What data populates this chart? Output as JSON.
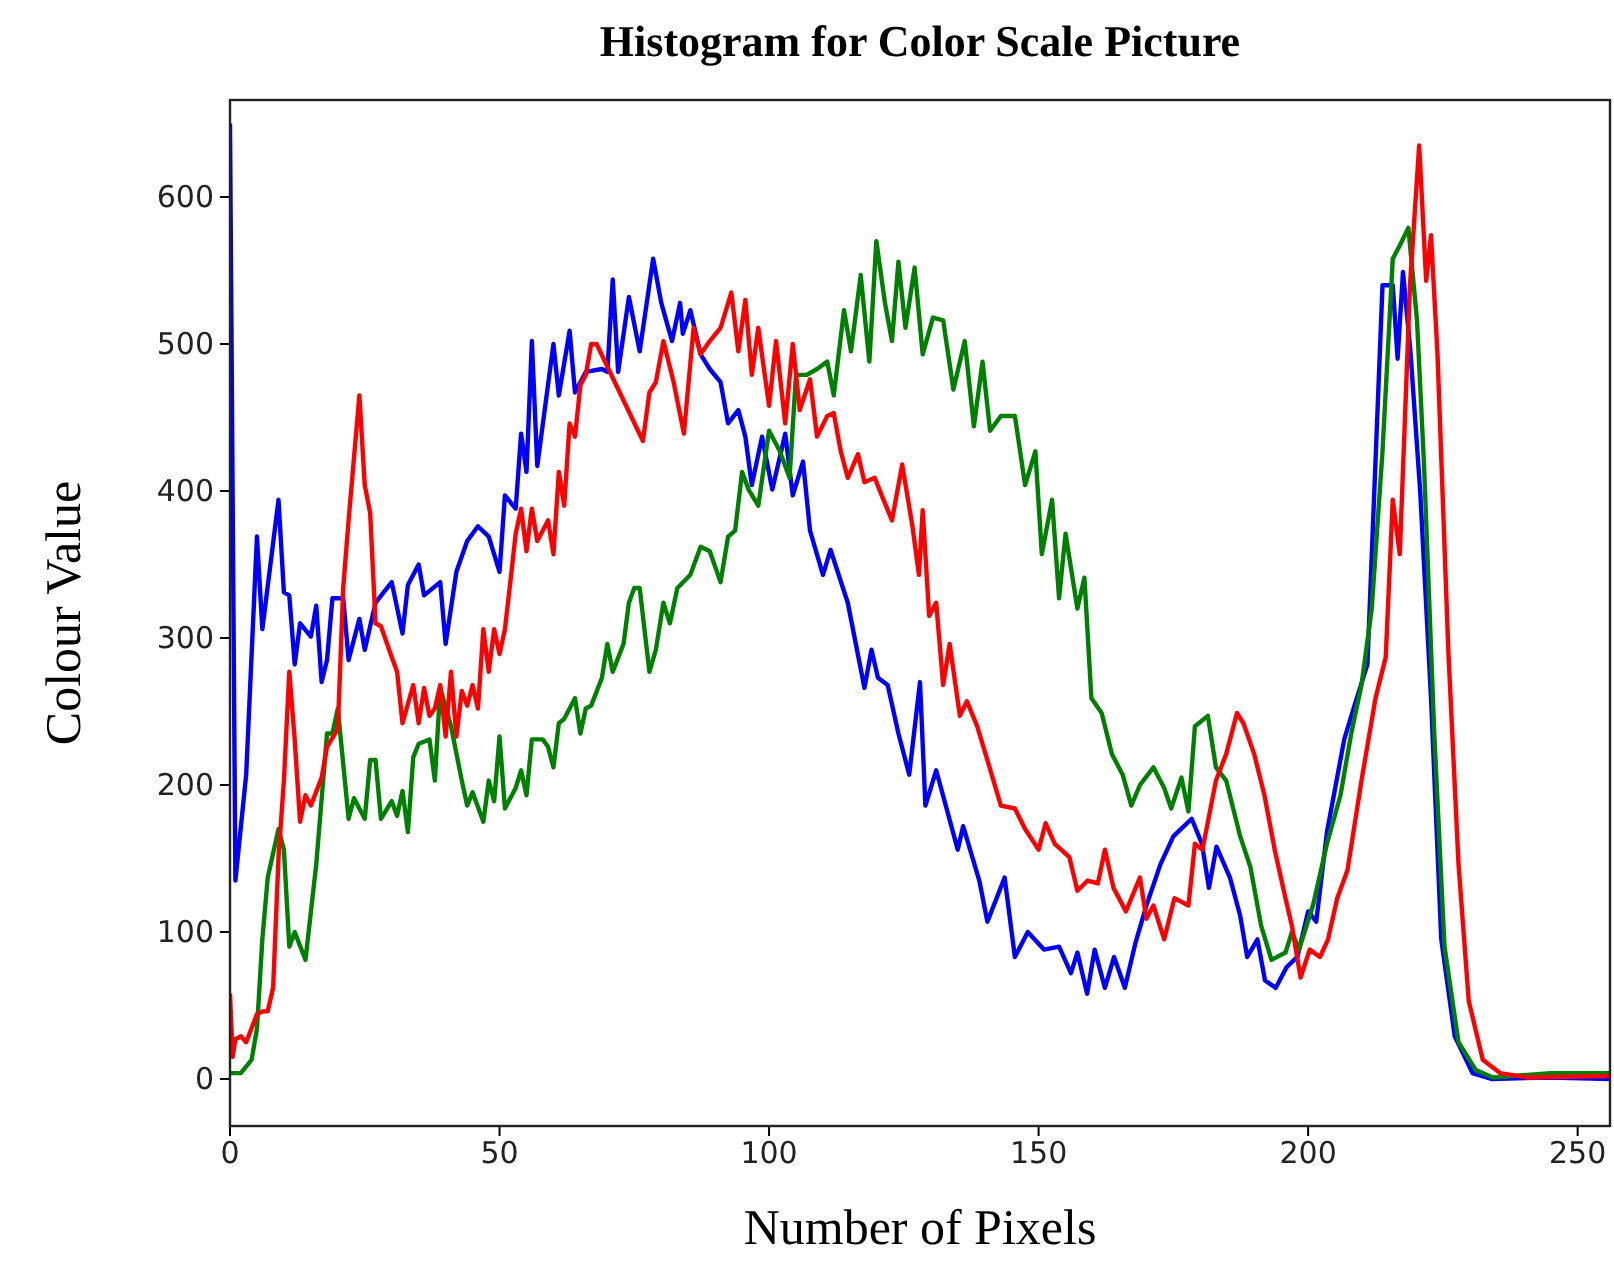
{
  "chart_data": {
    "type": "line",
    "title": "Histogram for Color Scale Picture",
    "xlabel": "Number of Pixels",
    "ylabel": "Colour Value",
    "xlim": [
      0,
      256
    ],
    "ylim": [
      -32,
      666
    ],
    "xticks": [
      0,
      50,
      100,
      150,
      200,
      250
    ],
    "yticks": [
      0,
      100,
      200,
      300,
      400,
      500,
      600
    ],
    "series": [
      {
        "color": "#0000ff",
        "x": [
          0,
          1,
          3,
          5,
          6,
          9,
          10,
          11,
          12,
          13,
          15,
          16,
          17,
          18,
          19,
          21,
          22,
          24,
          25,
          27,
          30,
          32,
          33,
          35,
          36,
          39,
          40,
          42,
          44,
          46,
          48,
          50,
          51,
          53,
          54,
          55,
          56,
          57,
          60,
          61,
          63,
          64,
          66,
          69,
          70,
          71,
          72,
          74,
          76,
          78.5,
          80,
          82,
          83.5,
          84,
          85.4,
          87.3,
          89,
          91,
          92.4,
          94.3,
          95.6,
          96.8,
          98.7,
          100.6,
          103,
          104.4,
          106.3,
          107.6,
          110,
          111.4,
          114.6,
          117.7,
          119,
          120.2,
          122,
          124,
          126,
          128,
          129,
          131,
          135,
          136,
          139,
          140.5,
          143.7,
          145.6,
          148,
          151,
          153.8,
          156,
          157.2,
          159,
          160.4,
          162.3,
          164,
          166,
          168,
          170,
          172.6,
          175,
          178.4,
          180.3,
          181.6,
          183,
          185.5,
          187.4,
          188.7,
          190.6,
          192,
          194,
          196,
          198,
          200,
          201.5,
          203.5,
          206.7,
          208.6,
          211,
          213.8,
          215.7,
          216.6,
          217.6,
          219,
          220.8,
          222.8,
          224.7,
          227.2,
          230.5,
          234,
          245,
          256
        ],
        "values": [
          650,
          135,
          207,
          369,
          306,
          394,
          331,
          329,
          282,
          310,
          301,
          322,
          270,
          285,
          327,
          327,
          285,
          313,
          292,
          324,
          338,
          303,
          336,
          350,
          329,
          338,
          296,
          345,
          366,
          376,
          369,
          345,
          397,
          388,
          439,
          413,
          502,
          417,
          500,
          465,
          509,
          467,
          481,
          483,
          481,
          544,
          481,
          532,
          495,
          558,
          528,
          502,
          528,
          507,
          523,
          493,
          483,
          474,
          446,
          455,
          437,
          404,
          437,
          401,
          439,
          397,
          420,
          373,
          343,
          360,
          324,
          266,
          292,
          273,
          268,
          235,
          207,
          270,
          186,
          210,
          156,
          172,
          135,
          107,
          137,
          83,
          100,
          88,
          90,
          72,
          86,
          58,
          88,
          62,
          83,
          62,
          93,
          118,
          146,
          165,
          177,
          160,
          130,
          158,
          137,
          111,
          83,
          95,
          67,
          62,
          76,
          83,
          114,
          107,
          168,
          231,
          254,
          282,
          540,
          540,
          490,
          549,
          494,
          399,
          259,
          95,
          29,
          4,
          0,
          1,
          0
        ]
      },
      {
        "color": "#008000",
        "x": [
          0,
          2,
          4,
          5,
          6,
          7,
          9,
          10,
          11,
          12,
          14,
          16,
          18,
          19,
          20,
          22,
          23,
          25,
          26,
          27,
          28,
          30,
          31,
          32,
          33,
          34,
          35,
          37,
          38,
          39,
          41,
          43,
          44,
          45,
          47,
          48,
          49,
          50,
          51,
          53,
          54,
          55,
          56,
          58,
          59,
          60,
          61,
          62,
          64,
          65,
          66,
          67,
          69,
          70,
          71,
          73,
          74,
          75,
          76,
          77.8,
          79,
          80.4,
          81.6,
          83,
          85.4,
          87.3,
          89,
          91,
          92.4,
          93.7,
          95,
          96.2,
          98,
          100,
          102,
          103.8,
          105,
          107,
          108.9,
          110.8,
          112,
          113.9,
          115.2,
          117,
          118.6,
          119.9,
          121.5,
          122.8,
          124,
          125.3,
          127,
          128.5,
          130.4,
          132.3,
          134.2,
          136.3,
          138,
          139.6,
          141,
          143,
          145.6,
          147.5,
          149.4,
          150.6,
          152.5,
          153.8,
          155,
          157.2,
          158.5,
          159.8,
          161.7,
          163.6,
          165.6,
          167.2,
          168.8,
          171.3,
          173.3,
          174.6,
          176.5,
          177.8,
          179,
          181.4,
          182.9,
          184.8,
          186.1,
          187.4,
          189.3,
          191.3,
          193.2,
          195.8,
          197,
          198.3,
          200.9,
          203.5,
          206,
          208,
          209.9,
          211.8,
          213.8,
          215.7,
          217,
          218.6,
          220.2,
          221.5,
          223.4,
          225.3,
          227.9,
          231.1,
          234.3,
          245,
          256
        ],
        "values": [
          4,
          4,
          13,
          34,
          95,
          137,
          170,
          156,
          90,
          100,
          81,
          146,
          235,
          235,
          252,
          177,
          191,
          177,
          217,
          217,
          177,
          189,
          179,
          196,
          168,
          219,
          228,
          231,
          203,
          266,
          240,
          203,
          186,
          195,
          175,
          203,
          189,
          233,
          184,
          198,
          210,
          193,
          231,
          231,
          226,
          212,
          242,
          245,
          259,
          235,
          252,
          254,
          273,
          296,
          277,
          296,
          324,
          334,
          334,
          277,
          292,
          324,
          310,
          334,
          343,
          362,
          359,
          338,
          369,
          373,
          413,
          401,
          390,
          441,
          427,
          409,
          479,
          479,
          483,
          488,
          465,
          523,
          495,
          547,
          488,
          570,
          528,
          502,
          556,
          511,
          552,
          493,
          518,
          516,
          469,
          502,
          444,
          488,
          441,
          451,
          451,
          404,
          427,
          357,
          394,
          327,
          371,
          320,
          341,
          259,
          249,
          221,
          207,
          186,
          200,
          212,
          198,
          184,
          205,
          182,
          240,
          247,
          212,
          203,
          184,
          165,
          144,
          104,
          81,
          86,
          100,
          88,
          118,
          160,
          193,
          235,
          268,
          320,
          427,
          558,
          567,
          579,
          516,
          418,
          235,
          90,
          25,
          6,
          1,
          4,
          4
        ]
      },
      {
        "color": "#ff0000",
        "x": [
          0,
          0.5,
          1,
          2,
          3,
          5,
          6,
          7,
          8,
          9,
          10,
          11,
          12,
          13,
          14,
          15,
          17,
          18,
          20,
          21,
          22,
          24,
          25,
          26,
          27,
          28,
          30,
          31,
          32,
          34,
          35,
          36,
          37,
          38,
          39,
          40,
          41,
          42,
          43,
          44,
          45,
          46,
          47,
          48,
          49,
          50,
          51,
          52,
          53,
          54,
          55,
          56,
          57,
          59,
          60,
          61,
          62,
          63,
          64,
          65,
          66,
          67,
          68,
          76.6,
          77.8,
          79,
          80.4,
          82.3,
          84.2,
          86,
          87.3,
          89,
          91,
          93,
          94.3,
          95.6,
          96.8,
          98,
          100,
          101.3,
          103,
          104.4,
          105.7,
          107.6,
          108.9,
          110.8,
          112,
          113.3,
          114.6,
          116.5,
          117.7,
          119.6,
          120.9,
          122.8,
          124.7,
          126.6,
          127.8,
          128.5,
          129.7,
          131,
          132.3,
          133.5,
          135.4,
          136.7,
          138.6,
          140.5,
          143,
          145.6,
          147.5,
          150,
          151.3,
          153,
          155.7,
          157.2,
          159.1,
          161,
          162.3,
          163.9,
          166.2,
          168.8,
          170,
          171.3,
          173.3,
          175.2,
          177.8,
          179,
          180.4,
          182.9,
          184.8,
          186.8,
          188,
          190,
          191.9,
          193.8,
          195.8,
          197,
          198.6,
          200.3,
          202.2,
          203.7,
          205.4,
          207.3,
          209.9,
          212.5,
          214.4,
          215.7,
          217,
          218.9,
          220.6,
          221.9,
          222.8,
          224,
          226,
          227.9,
          229.8,
          232.4,
          235.6,
          240.7,
          256
        ],
        "values": [
          58,
          15,
          27,
          29,
          25,
          44,
          46,
          46,
          62,
          151,
          203,
          277,
          231,
          175,
          193,
          186,
          205,
          226,
          238,
          334,
          380,
          465,
          404,
          385,
          310,
          308,
          287,
          277,
          242,
          268,
          242,
          266,
          247,
          252,
          268,
          233,
          277,
          233,
          264,
          254,
          268,
          252,
          306,
          277,
          306,
          289,
          306,
          338,
          371,
          388,
          359,
          388,
          366,
          380,
          357,
          413,
          390,
          446,
          437,
          472,
          479,
          500,
          500,
          434,
          467,
          474,
          502,
          474,
          439,
          511,
          493,
          502,
          511,
          535,
          495,
          530,
          479,
          511,
          458,
          502,
          446,
          500,
          455,
          476,
          437,
          451,
          453,
          427,
          409,
          425,
          406,
          409,
          397,
          380,
          418,
          376,
          343,
          387,
          315,
          324,
          268,
          296,
          247,
          257,
          240,
          217,
          186,
          184,
          170,
          156,
          174,
          160,
          151,
          128,
          135,
          133,
          156,
          130,
          114,
          137,
          109,
          118,
          95,
          123,
          118,
          160,
          156,
          203,
          221,
          249,
          242,
          221,
          193,
          156,
          123,
          104,
          69,
          88,
          83,
          95,
          123,
          142,
          203,
          259,
          287,
          394,
          357,
          540,
          635,
          543,
          574,
          493,
          292,
          146,
          53,
          13,
          4,
          1,
          2
        ]
      }
    ]
  }
}
